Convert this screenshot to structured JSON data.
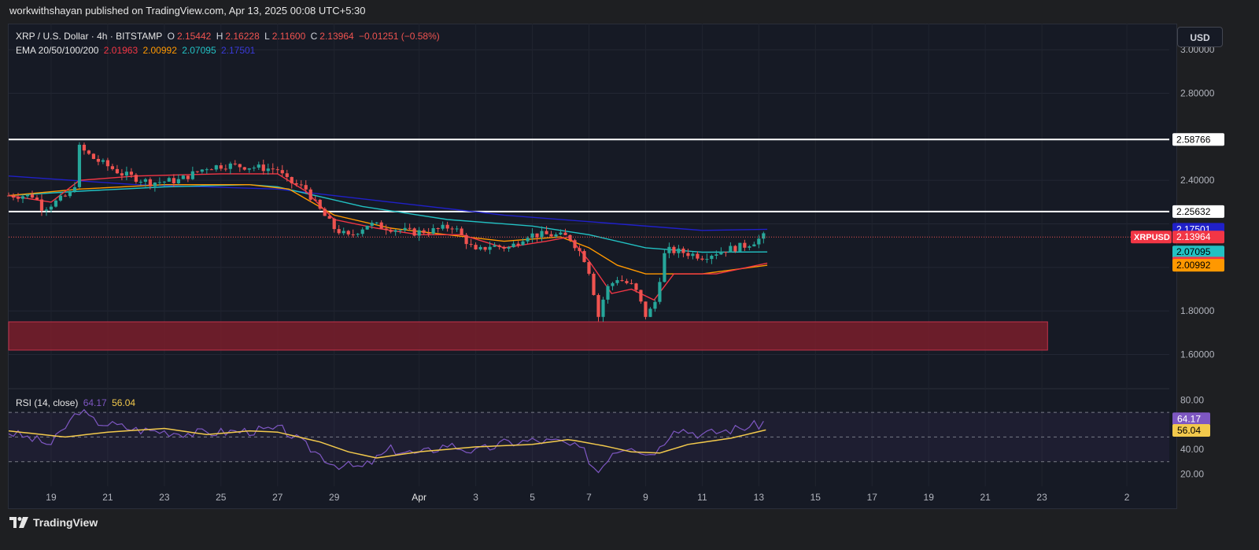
{
  "header": {
    "published_line": "workwithshayan published on TradingView.com, Apr 13, 2025 00:08 UTC+5:30"
  },
  "footer": {
    "brand": "TradingView"
  },
  "currency_button": "USD",
  "legend": {
    "symbol_line": "XRP / U.S. Dollar · 4h · BITSTAMP",
    "ohlc": [
      {
        "key": "O",
        "value": "2.15442"
      },
      {
        "key": "H",
        "value": "2.16228"
      },
      {
        "key": "L",
        "value": "2.11600"
      },
      {
        "key": "C",
        "value": "2.13964"
      }
    ],
    "change": "−0.01251 (−0.58%)",
    "ema_label": "EMA 20/50/100/200",
    "ema_values": [
      "2.01963",
      "2.00992",
      "2.07095",
      "2.17501"
    ]
  },
  "colors": {
    "up": "#26a69a",
    "down": "#ef5350",
    "ema20": "#f23645",
    "ema50": "#ff9800",
    "ema100": "#22c1c3",
    "ema200": "#2020c8",
    "rsi": "#7e57c2",
    "rsi_ma": "#f2c94c",
    "zone": "#7a1f2b",
    "hline": "#ffffff"
  },
  "chart_data": [
    {
      "type": "candlestick",
      "title": "XRP / U.S. Dollar · 4h · BITSTAMP",
      "ylim": [
        1.45,
        3.12
      ],
      "y_ticks": [
        "3.00000",
        "2.80000",
        "2.40000",
        "1.80000",
        "1.60000"
      ],
      "y_tick_values": [
        3.0,
        2.8,
        2.4,
        1.8,
        1.6
      ],
      "x_ticks": [
        "19",
        "21",
        "23",
        "25",
        "27",
        "29",
        "Apr",
        "3",
        "5",
        "7",
        "9",
        "11",
        "13",
        "15",
        "17",
        "19",
        "21",
        "23",
        "2"
      ],
      "x_tick_days": [
        0,
        2,
        4,
        6,
        8,
        10,
        13,
        15,
        17,
        19,
        21,
        23,
        25,
        27,
        29,
        31,
        33,
        35,
        38
      ],
      "day_range": [
        -1.5,
        39.5
      ],
      "horizontal_levels": [
        2.58766,
        2.25632
      ],
      "demand_zone": {
        "low": 1.62,
        "high": 1.75,
        "day_start": -1.5,
        "day_end": 35.2
      },
      "last_price_label": "XRPUSD",
      "price_labels": [
        {
          "text": "2.58766",
          "value": 2.58766,
          "bg": "#ffffff",
          "fg": "#000000"
        },
        {
          "text": "2.25632",
          "value": 2.25632,
          "bg": "#ffffff",
          "fg": "#000000"
        },
        {
          "text": "2.17501",
          "value": 2.17501,
          "bg": "#2020c8",
          "fg": "#ffffff"
        },
        {
          "text": "2.13964",
          "value": 2.13964,
          "bg": "#f23645",
          "fg": "#ffffff"
        },
        {
          "text": "2.07095",
          "value": 2.07095,
          "bg": "#22c1c3",
          "fg": "#000000"
        },
        {
          "text": "2.01963",
          "value": 2.01963,
          "bg": "#f23645",
          "fg": "#ffffff"
        },
        {
          "text": "2.00992",
          "value": 2.00992,
          "bg": "#ff9800",
          "fg": "#000000"
        }
      ],
      "price_keypoints": [
        [
          -1.5,
          2.33
        ],
        [
          -0.6,
          2.33
        ],
        [
          -0.3,
          2.27
        ],
        [
          0.3,
          2.31
        ],
        [
          0.8,
          2.35
        ],
        [
          1.0,
          2.55
        ],
        [
          1.5,
          2.5
        ],
        [
          2.5,
          2.43
        ],
        [
          3.5,
          2.39
        ],
        [
          4.5,
          2.4
        ],
        [
          5.5,
          2.46
        ],
        [
          6.2,
          2.47
        ],
        [
          7.2,
          2.46
        ],
        [
          8.0,
          2.45
        ],
        [
          8.3,
          2.4
        ],
        [
          9.0,
          2.36
        ],
        [
          9.4,
          2.28
        ],
        [
          10.0,
          2.18
        ],
        [
          10.5,
          2.14
        ],
        [
          11.2,
          2.2
        ],
        [
          12.0,
          2.18
        ],
        [
          12.8,
          2.16
        ],
        [
          13.5,
          2.17
        ],
        [
          14.2,
          2.19
        ],
        [
          15.0,
          2.07
        ],
        [
          15.5,
          2.1
        ],
        [
          16.2,
          2.09
        ],
        [
          16.8,
          2.15
        ],
        [
          17.6,
          2.15
        ],
        [
          18.3,
          2.14
        ],
        [
          18.8,
          2.05
        ],
        [
          19.1,
          1.95
        ],
        [
          19.3,
          1.76
        ],
        [
          19.6,
          1.9
        ],
        [
          20.0,
          1.95
        ],
        [
          20.6,
          1.91
        ],
        [
          21.0,
          1.78
        ],
        [
          21.3,
          1.82
        ],
        [
          21.7,
          2.08
        ],
        [
          22.3,
          2.07
        ],
        [
          23.0,
          2.05
        ],
        [
          23.8,
          2.08
        ],
        [
          24.5,
          2.1
        ],
        [
          25.0,
          2.13
        ],
        [
          25.3,
          2.15
        ]
      ],
      "ema_series": [
        {
          "key": "ema200",
          "value": 2.17501,
          "points": [
            [
              -1.5,
              2.42
            ],
            [
              3,
              2.38
            ],
            [
              8,
              2.36
            ],
            [
              12,
              2.3
            ],
            [
              16,
              2.24
            ],
            [
              20,
              2.2
            ],
            [
              23,
              2.17
            ],
            [
              25.3,
              2.17501
            ]
          ]
        },
        {
          "key": "ema100",
          "value": 2.07095,
          "points": [
            [
              -1.5,
              2.33
            ],
            [
              1,
              2.35
            ],
            [
              4,
              2.37
            ],
            [
              7,
              2.38
            ],
            [
              8,
              2.37
            ],
            [
              11,
              2.28
            ],
            [
              14,
              2.22
            ],
            [
              17,
              2.19
            ],
            [
              19,
              2.15
            ],
            [
              21,
              2.09
            ],
            [
              23,
              2.07
            ],
            [
              25.3,
              2.07095
            ]
          ]
        },
        {
          "key": "ema50",
          "value": 2.00992,
          "points": [
            [
              -1.5,
              2.33
            ],
            [
              1,
              2.36
            ],
            [
              4,
              2.38
            ],
            [
              7,
              2.38
            ],
            [
              8.4,
              2.36
            ],
            [
              10,
              2.24
            ],
            [
              12,
              2.18
            ],
            [
              14,
              2.15
            ],
            [
              16,
              2.12
            ],
            [
              18,
              2.14
            ],
            [
              19,
              2.09
            ],
            [
              20,
              2.01
            ],
            [
              21,
              1.97
            ],
            [
              23,
              1.97
            ],
            [
              25.3,
              2.00992
            ]
          ]
        },
        {
          "key": "ema20",
          "value": 2.01963,
          "points": [
            [
              -1.5,
              2.33
            ],
            [
              0,
              2.3
            ],
            [
              1,
              2.4
            ],
            [
              3,
              2.42
            ],
            [
              6,
              2.43
            ],
            [
              8,
              2.43
            ],
            [
              9,
              2.35
            ],
            [
              10,
              2.22
            ],
            [
              11.5,
              2.18
            ],
            [
              13,
              2.15
            ],
            [
              14.5,
              2.15
            ],
            [
              16,
              2.09
            ],
            [
              17.5,
              2.12
            ],
            [
              18.3,
              2.14
            ],
            [
              19,
              2.03
            ],
            [
              19.8,
              1.88
            ],
            [
              20.5,
              1.9
            ],
            [
              21.3,
              1.85
            ],
            [
              22,
              1.97
            ],
            [
              23.5,
              1.97
            ],
            [
              25.3,
              2.01963
            ]
          ]
        }
      ]
    },
    {
      "type": "line",
      "title": "RSI (14, close)",
      "ylim": [
        10,
        88
      ],
      "y_ticks": [
        "80.00",
        "40.00",
        "20.00"
      ],
      "y_tick_values": [
        80,
        40,
        20
      ],
      "bands": [
        70,
        50,
        30
      ],
      "series": [
        {
          "key": "rsi",
          "value": "64.17",
          "bg": "#7e57c2",
          "points": [
            [
              -1.5,
              54
            ],
            [
              0,
              44
            ],
            [
              1,
              72
            ],
            [
              1.5,
              63
            ],
            [
              3,
              56
            ],
            [
              5,
              53
            ],
            [
              7,
              55
            ],
            [
              8.2,
              56
            ],
            [
              9,
              43
            ],
            [
              10,
              28
            ],
            [
              11,
              25
            ],
            [
              12,
              40
            ],
            [
              13,
              36
            ],
            [
              14,
              44
            ],
            [
              15,
              38
            ],
            [
              16,
              45
            ],
            [
              17,
              47
            ],
            [
              18,
              46
            ],
            [
              18.8,
              39
            ],
            [
              19.3,
              21
            ],
            [
              19.8,
              38
            ],
            [
              20.5,
              44
            ],
            [
              21,
              36
            ],
            [
              21.5,
              41
            ],
            [
              22,
              58
            ],
            [
              23,
              52
            ],
            [
              24,
              56
            ],
            [
              25,
              60
            ],
            [
              25.3,
              64.17
            ]
          ]
        },
        {
          "key": "rsi_ma",
          "value": "56.04",
          "bg": "#f2c94c",
          "points": [
            [
              -1.5,
              55
            ],
            [
              0.5,
              50
            ],
            [
              2,
              54
            ],
            [
              4,
              57
            ],
            [
              5.5,
              52
            ],
            [
              7,
              55
            ],
            [
              8,
              54
            ],
            [
              9.5,
              46
            ],
            [
              10.5,
              38
            ],
            [
              11.5,
              33
            ],
            [
              13,
              38
            ],
            [
              15,
              42
            ],
            [
              17,
              44
            ],
            [
              18.3,
              48
            ],
            [
              19.5,
              43
            ],
            [
              20.5,
              38
            ],
            [
              21.5,
              37
            ],
            [
              22.5,
              44
            ],
            [
              24,
              49
            ],
            [
              25.3,
              56.04
            ]
          ]
        }
      ]
    }
  ]
}
